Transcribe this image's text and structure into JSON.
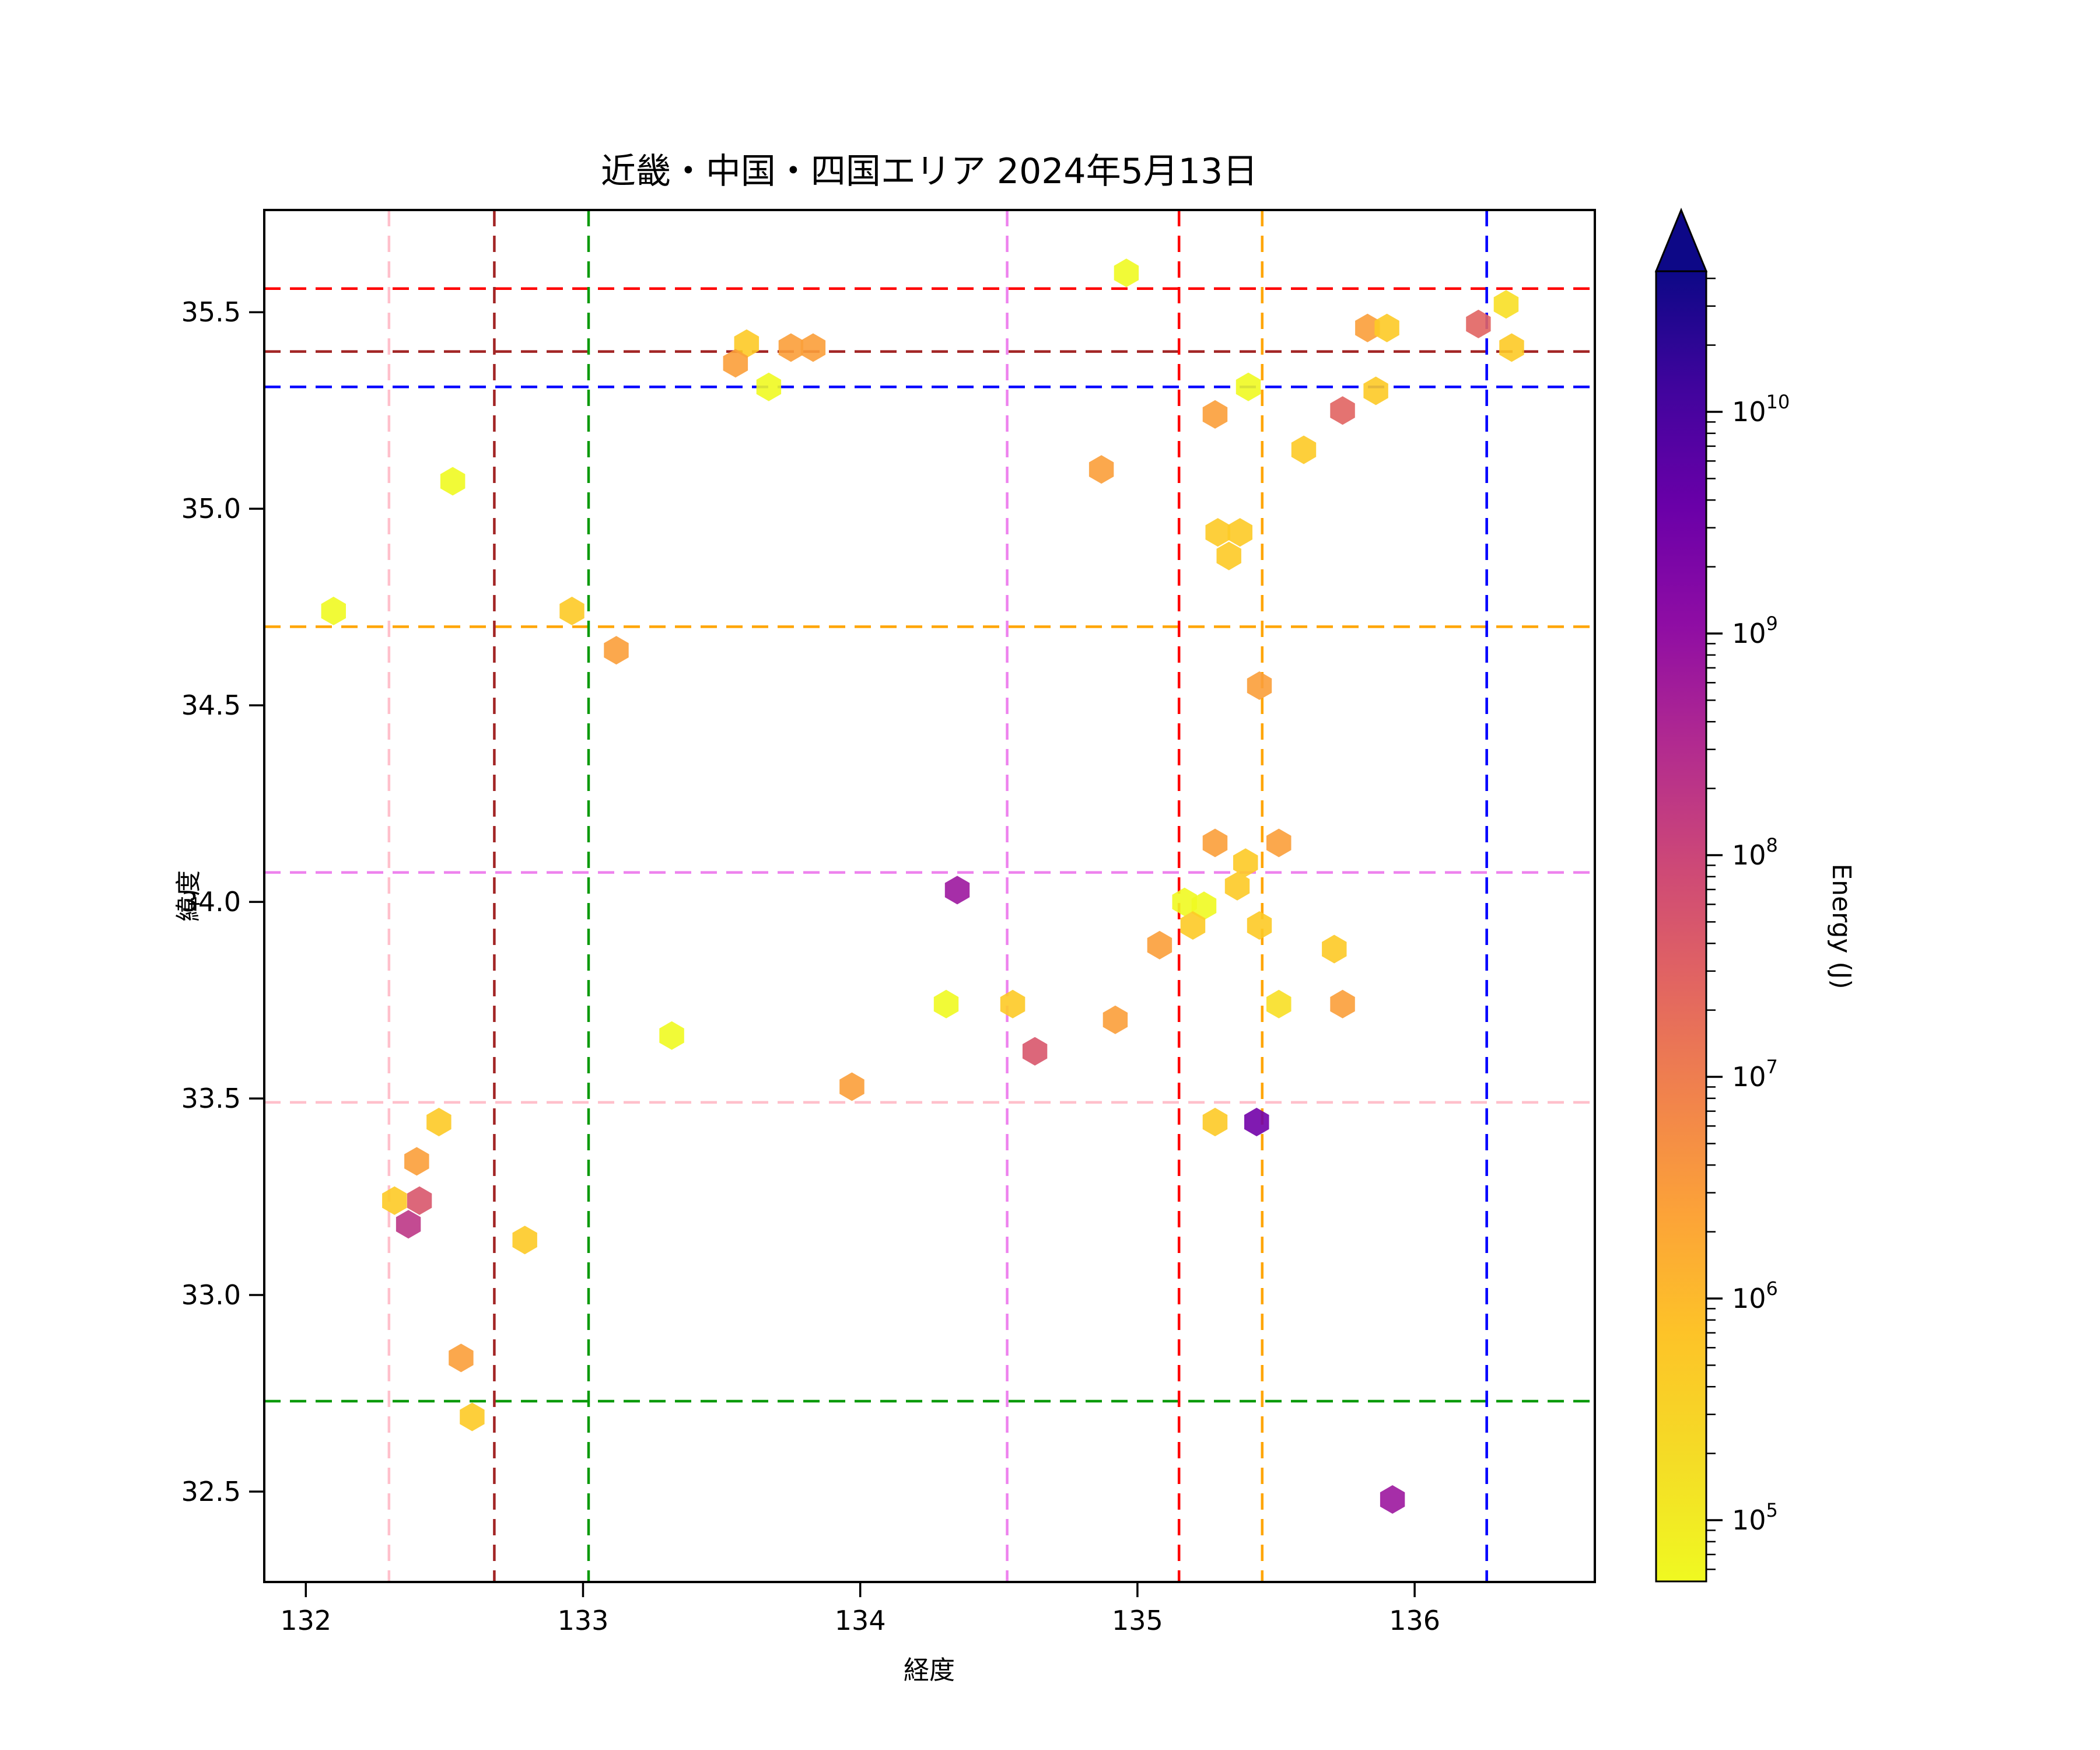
{
  "chart_data": {
    "type": "scatter",
    "title": "近畿・中国・四国エリア 2024年5月13日",
    "xlabel": "経度",
    "ylabel": "緯度",
    "xlim": [
      131.85,
      136.65
    ],
    "ylim": [
      32.27,
      35.76
    ],
    "grid": false,
    "x_ticks": [
      132,
      133,
      134,
      135,
      136
    ],
    "x_tick_labels": [
      "132",
      "133",
      "134",
      "135",
      "136"
    ],
    "y_ticks": [
      35.5,
      35.0,
      34.5,
      34.0,
      33.5,
      33.0,
      32.5
    ],
    "y_tick_labels": [
      "35.5",
      "35.0",
      "34.5",
      "34.0",
      "33.5",
      "33.0",
      "32.5"
    ],
    "marker": "hexagon",
    "colorbar": {
      "label": "Energy (J)",
      "scale": "log",
      "colormap": "plasma_r",
      "extend": "max",
      "tick_exponents": [
        5,
        6,
        7,
        8,
        9,
        10
      ],
      "tick_labels": [
        "10^5",
        "10^6",
        "10^7",
        "10^8",
        "10^9",
        "10^10"
      ],
      "gradient_top_color": "#0d0887",
      "gradient_bottom_color": "#f0f921"
    },
    "reference_lines": {
      "horizontal": [
        {
          "lat": 35.56,
          "color": "#ff0000"
        },
        {
          "lat": 35.4,
          "color": "#a22525"
        },
        {
          "lat": 35.31,
          "color": "#0000ff"
        },
        {
          "lat": 34.7,
          "color": "#ffa500"
        },
        {
          "lat": 34.075,
          "color": "#ee82ee"
        },
        {
          "lat": 33.49,
          "color": "#ffc0cb"
        },
        {
          "lat": 32.73,
          "color": "#0a9a0a"
        }
      ],
      "vertical": [
        {
          "lon": 132.3,
          "color": "#ffc0cb"
        },
        {
          "lon": 132.68,
          "color": "#a22525"
        },
        {
          "lon": 133.02,
          "color": "#0a9a0a"
        },
        {
          "lon": 134.53,
          "color": "#ee82ee"
        },
        {
          "lon": 135.15,
          "color": "#ff0000"
        },
        {
          "lon": 135.45,
          "color": "#ffa500"
        },
        {
          "lon": 136.26,
          "color": "#0000ff"
        }
      ]
    },
    "points": [
      {
        "lon": 134.96,
        "lat": 35.6,
        "color": "#f0f921",
        "energy_j": 80000.0
      },
      {
        "lon": 133.59,
        "lat": 35.42,
        "color": "#fdca26",
        "energy_j": 600000.0
      },
      {
        "lon": 133.75,
        "lat": 35.41,
        "color": "#fb9f3a",
        "energy_j": 3000000.0
      },
      {
        "lon": 133.83,
        "lat": 35.41,
        "color": "#fb9f3a",
        "energy_j": 3000000.0
      },
      {
        "lon": 133.55,
        "lat": 35.37,
        "color": "#fb9f3a",
        "energy_j": 3000000.0
      },
      {
        "lon": 133.67,
        "lat": 35.31,
        "color": "#f0f921",
        "energy_j": 80000.0
      },
      {
        "lon": 135.83,
        "lat": 35.46,
        "color": "#fb9f3a",
        "energy_j": 3000000.0
      },
      {
        "lon": 135.9,
        "lat": 35.46,
        "color": "#fdca26",
        "energy_j": 600000.0
      },
      {
        "lon": 136.23,
        "lat": 35.47,
        "color": "#e16462",
        "energy_j": 15000000.0
      },
      {
        "lon": 136.33,
        "lat": 35.52,
        "color": "#f8df25",
        "energy_j": 200000.0
      },
      {
        "lon": 136.35,
        "lat": 35.41,
        "color": "#fdca26",
        "energy_j": 600000.0
      },
      {
        "lon": 135.4,
        "lat": 35.31,
        "color": "#f0f921",
        "energy_j": 80000.0
      },
      {
        "lon": 135.28,
        "lat": 35.24,
        "color": "#fb9f3a",
        "energy_j": 3000000.0
      },
      {
        "lon": 135.86,
        "lat": 35.3,
        "color": "#fdca26",
        "energy_j": 600000.0
      },
      {
        "lon": 135.74,
        "lat": 35.25,
        "color": "#e16462",
        "energy_j": 15000000.0
      },
      {
        "lon": 135.6,
        "lat": 35.15,
        "color": "#fdca26",
        "energy_j": 600000.0
      },
      {
        "lon": 134.87,
        "lat": 35.1,
        "color": "#fb9f3a",
        "energy_j": 3000000.0
      },
      {
        "lon": 132.53,
        "lat": 35.07,
        "color": "#f0f921",
        "energy_j": 80000.0
      },
      {
        "lon": 135.29,
        "lat": 34.94,
        "color": "#fdca26",
        "energy_j": 600000.0
      },
      {
        "lon": 135.37,
        "lat": 34.94,
        "color": "#fdca26",
        "energy_j": 600000.0
      },
      {
        "lon": 135.33,
        "lat": 34.88,
        "color": "#fdca26",
        "energy_j": 600000.0
      },
      {
        "lon": 132.1,
        "lat": 34.74,
        "color": "#f0f921",
        "energy_j": 80000.0
      },
      {
        "lon": 132.96,
        "lat": 34.74,
        "color": "#fdca26",
        "energy_j": 600000.0
      },
      {
        "lon": 133.12,
        "lat": 34.64,
        "color": "#fb9f3a",
        "energy_j": 3000000.0
      },
      {
        "lon": 135.44,
        "lat": 34.55,
        "color": "#fb9f3a",
        "energy_j": 3000000.0
      },
      {
        "lon": 135.28,
        "lat": 34.15,
        "color": "#fb9f3a",
        "energy_j": 3000000.0
      },
      {
        "lon": 135.51,
        "lat": 34.15,
        "color": "#fb9f3a",
        "energy_j": 3000000.0
      },
      {
        "lon": 135.39,
        "lat": 34.1,
        "color": "#fdca26",
        "energy_j": 600000.0
      },
      {
        "lon": 135.36,
        "lat": 34.04,
        "color": "#fdca26",
        "energy_j": 600000.0
      },
      {
        "lon": 134.35,
        "lat": 34.03,
        "color": "#9c179e",
        "energy_j": 600000000.0
      },
      {
        "lon": 135.17,
        "lat": 34.0,
        "color": "#f0f921",
        "energy_j": 80000.0
      },
      {
        "lon": 135.24,
        "lat": 33.99,
        "color": "#f0f921",
        "energy_j": 80000.0
      },
      {
        "lon": 135.2,
        "lat": 33.94,
        "color": "#fdca26",
        "energy_j": 600000.0
      },
      {
        "lon": 135.44,
        "lat": 33.94,
        "color": "#fdca26",
        "energy_j": 600000.0
      },
      {
        "lon": 135.08,
        "lat": 33.89,
        "color": "#fb9f3a",
        "energy_j": 3000000.0
      },
      {
        "lon": 135.71,
        "lat": 33.88,
        "color": "#fdca26",
        "energy_j": 600000.0
      },
      {
        "lon": 134.31,
        "lat": 33.74,
        "color": "#f0f921",
        "energy_j": 80000.0
      },
      {
        "lon": 134.55,
        "lat": 33.74,
        "color": "#fdca26",
        "energy_j": 600000.0
      },
      {
        "lon": 135.51,
        "lat": 33.74,
        "color": "#f8df25",
        "energy_j": 200000.0
      },
      {
        "lon": 135.74,
        "lat": 33.74,
        "color": "#fb9f3a",
        "energy_j": 3000000.0
      },
      {
        "lon": 134.92,
        "lat": 33.7,
        "color": "#fb9f3a",
        "energy_j": 3000000.0
      },
      {
        "lon": 134.63,
        "lat": 33.62,
        "color": "#d8576b",
        "energy_j": 40000000.0
      },
      {
        "lon": 133.32,
        "lat": 33.66,
        "color": "#f0f921",
        "energy_j": 80000.0
      },
      {
        "lon": 133.97,
        "lat": 33.53,
        "color": "#fb9f3a",
        "energy_j": 3000000.0
      },
      {
        "lon": 135.28,
        "lat": 33.44,
        "color": "#fdca26",
        "energy_j": 600000.0
      },
      {
        "lon": 135.43,
        "lat": 33.44,
        "color": "#7201a8",
        "energy_j": 2000000000.0
      },
      {
        "lon": 132.48,
        "lat": 33.44,
        "color": "#fdca26",
        "energy_j": 600000.0
      },
      {
        "lon": 132.4,
        "lat": 33.34,
        "color": "#fb9f3a",
        "energy_j": 3000000.0
      },
      {
        "lon": 132.32,
        "lat": 33.24,
        "color": "#fdca26",
        "energy_j": 600000.0
      },
      {
        "lon": 132.41,
        "lat": 33.24,
        "color": "#d8576b",
        "energy_j": 40000000.0
      },
      {
        "lon": 132.37,
        "lat": 33.18,
        "color": "#bd3786",
        "energy_j": 150000000.0
      },
      {
        "lon": 132.79,
        "lat": 33.14,
        "color": "#fdca26",
        "energy_j": 600000.0
      },
      {
        "lon": 132.56,
        "lat": 32.84,
        "color": "#fb9f3a",
        "energy_j": 3000000.0
      },
      {
        "lon": 132.6,
        "lat": 32.69,
        "color": "#fdca26",
        "energy_j": 600000.0
      },
      {
        "lon": 135.92,
        "lat": 32.48,
        "color": "#9c179e",
        "energy_j": 600000000.0
      }
    ]
  }
}
